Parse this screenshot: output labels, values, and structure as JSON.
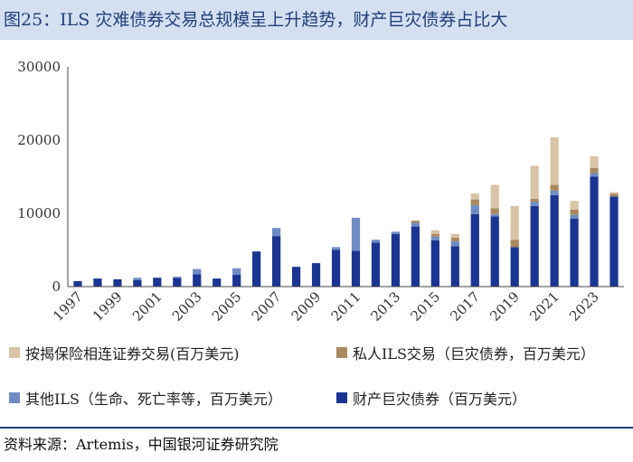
{
  "title": "图25：ILS 灾难债券交易总规模呈上升趋势，财产巨灾债券占比大",
  "source": "资料来源：Artemis，中国银河证券研究院",
  "chart_data": {
    "type": "bar",
    "stacked": true,
    "title": "图25：ILS 灾难债券交易总规模呈上升趋势，财产巨灾债券占比大",
    "ylim": [
      0,
      30000
    ],
    "yticks": [
      "0",
      "10000",
      "20000",
      "30000"
    ],
    "yticks_values": [
      0,
      10000,
      20000,
      30000
    ],
    "categories": [
      "1997",
      "1998",
      "1999",
      "2000",
      "2001",
      "2002",
      "2003",
      "2004",
      "2005",
      "2006",
      "2007",
      "2008",
      "2009",
      "2010",
      "2011",
      "2012",
      "2013",
      "2014",
      "2015",
      "2016",
      "2017",
      "2018",
      "2019",
      "2020",
      "2021",
      "2022",
      "2023",
      "2024"
    ],
    "xtick_labels": [
      "1997",
      "1999",
      "2001",
      "2003",
      "2005",
      "2007",
      "2009",
      "2011",
      "2013",
      "2015",
      "2017",
      "2019",
      "2021",
      "2023"
    ],
    "legend_placement": "bottom",
    "series": [
      {
        "name": "财产巨灾债券（百万美元）",
        "color": "#1b3593",
        "values": [
          750,
          1100,
          1000,
          900,
          1200,
          1200,
          1700,
          1100,
          1600,
          4800,
          6900,
          2700,
          3200,
          5000,
          4900,
          6000,
          7200,
          8200,
          6300,
          5500,
          9900,
          9600,
          5400,
          11000,
          12500,
          9300,
          15000,
          12300
        ]
      },
      {
        "name": "其他ILS（生命、死亡率等，百万美元）",
        "color": "#6f8cc4",
        "values": [
          0,
          0,
          0,
          300,
          50,
          150,
          700,
          0,
          900,
          0,
          1100,
          0,
          0,
          400,
          4500,
          400,
          300,
          500,
          500,
          700,
          1200,
          300,
          0,
          600,
          600,
          500,
          500,
          0
        ]
      },
      {
        "name": "私人ILS交易（巨灾债券，百万美元）",
        "color": "#a8895f",
        "values": [
          0,
          0,
          0,
          0,
          0,
          0,
          0,
          0,
          0,
          0,
          0,
          0,
          0,
          0,
          0,
          0,
          0,
          300,
          400,
          500,
          800,
          800,
          1000,
          400,
          800,
          700,
          700,
          400
        ]
      },
      {
        "name": "按揭保险相连证券交易(百万美元)",
        "color": "#d8c4a6",
        "values": [
          0,
          0,
          0,
          0,
          0,
          0,
          0,
          0,
          0,
          0,
          0,
          0,
          0,
          0,
          0,
          0,
          0,
          0,
          500,
          500,
          800,
          3200,
          4600,
          4500,
          6500,
          1200,
          1600,
          200
        ]
      }
    ]
  }
}
